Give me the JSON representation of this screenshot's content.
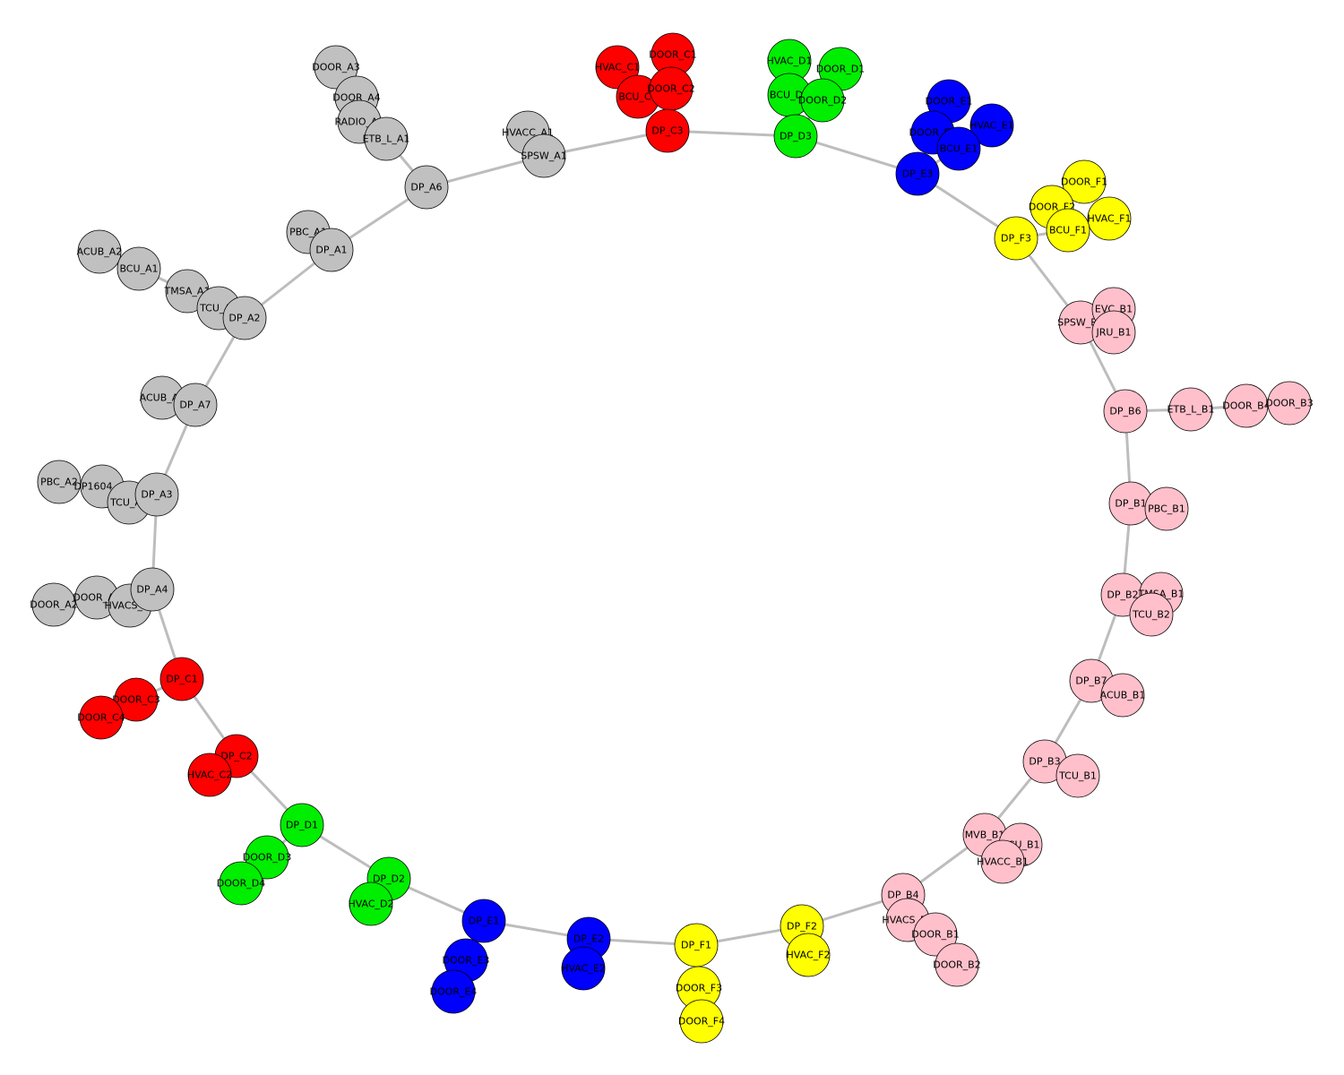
{
  "groups": [
    {
      "name": "A",
      "color": "#c0c0c0"
    },
    {
      "name": "B",
      "color": "#ffc0cb"
    },
    {
      "name": "C",
      "color": "#ff0000"
    },
    {
      "name": "D",
      "color": "#00ee00"
    },
    {
      "name": "E",
      "color": "#0000ff"
    },
    {
      "name": "F",
      "color": "#ffff00"
    }
  ],
  "nodes": [
    {
      "id": "DOOR_A3",
      "label": "DOOR_A3",
      "group": "A"
    },
    {
      "id": "DOOR_A4",
      "label": "DOOR_A4",
      "group": "A"
    },
    {
      "id": "RADIO_A1",
      "label": "RADIO_A1",
      "group": "A"
    },
    {
      "id": "ETB_L_A1",
      "label": "ETB_L_A1",
      "group": "A"
    },
    {
      "id": "DP_A6",
      "label": "DP_A6",
      "group": "A"
    },
    {
      "id": "HVACC_A1",
      "label": "HVACC_A1",
      "group": "A"
    },
    {
      "id": "SPSW_A1",
      "label": "SPSW_A1",
      "group": "A"
    },
    {
      "id": "PBC_A1",
      "label": "PBC_A1",
      "group": "A"
    },
    {
      "id": "DP_A1",
      "label": "DP_A1",
      "group": "A"
    },
    {
      "id": "ACUB_A2",
      "label": "ACUB_A2",
      "group": "A"
    },
    {
      "id": "BCU_A1",
      "label": "BCU_A1",
      "group": "A"
    },
    {
      "id": "TMSA_A1",
      "label": "TMSA_A1",
      "group": "A"
    },
    {
      "id": "TCU_A2",
      "label": "TCU_A2",
      "group": "A"
    },
    {
      "id": "DP_A2",
      "label": "DP_A2",
      "group": "A"
    },
    {
      "id": "ACUB_A1",
      "label": "ACUB_A1",
      "group": "A"
    },
    {
      "id": "DP_A7",
      "label": "DP_A7",
      "group": "A"
    },
    {
      "id": "PBC_A2",
      "label": "PBC_A2",
      "group": "A"
    },
    {
      "id": "DP1604_A1",
      "label": "DP1604_A1",
      "group": "A"
    },
    {
      "id": "TCU_A1",
      "label": "TCU_A1",
      "group": "A"
    },
    {
      "id": "DP_A3",
      "label": "DP_A3",
      "group": "A"
    },
    {
      "id": "DOOR_A2",
      "label": "DOOR_A2",
      "group": "A"
    },
    {
      "id": "DOOR_A1",
      "label": "DOOR_A1",
      "group": "A"
    },
    {
      "id": "HVACS_A1",
      "label": "HVACS_A1",
      "group": "A"
    },
    {
      "id": "DP_A4",
      "label": "DP_A4",
      "group": "A"
    },
    {
      "id": "HVAC_C1",
      "label": "HVAC_C1",
      "group": "C"
    },
    {
      "id": "DOOR_C1",
      "label": "DOOR_C1",
      "group": "C"
    },
    {
      "id": "BCU_C1",
      "label": "BCU_C1",
      "group": "C"
    },
    {
      "id": "DOOR_C2",
      "label": "DOOR_C2",
      "group": "C"
    },
    {
      "id": "DP_C3",
      "label": "DP_C3",
      "group": "C"
    },
    {
      "id": "DP_C1",
      "label": "DP_C1",
      "group": "C"
    },
    {
      "id": "DOOR_C3",
      "label": "DOOR_C3",
      "group": "C"
    },
    {
      "id": "DOOR_C4",
      "label": "DOOR_C4",
      "group": "C"
    },
    {
      "id": "DP_C2",
      "label": "DP_C2",
      "group": "C"
    },
    {
      "id": "HVAC_C2",
      "label": "HVAC_C2",
      "group": "C"
    },
    {
      "id": "HVAC_D1",
      "label": "HVAC_D1",
      "group": "D"
    },
    {
      "id": "DOOR_D1",
      "label": "DOOR_D1",
      "group": "D"
    },
    {
      "id": "BCU_D1",
      "label": "BCU_D1",
      "group": "D"
    },
    {
      "id": "DOOR_D2",
      "label": "DOOR_D2",
      "group": "D"
    },
    {
      "id": "DP_D3",
      "label": "DP_D3",
      "group": "D"
    },
    {
      "id": "DP_D1",
      "label": "DP_D1",
      "group": "D"
    },
    {
      "id": "DOOR_D3",
      "label": "DOOR_D3",
      "group": "D"
    },
    {
      "id": "DOOR_D4",
      "label": "DOOR_D4",
      "group": "D"
    },
    {
      "id": "DP_D2",
      "label": "DP_D2",
      "group": "D"
    },
    {
      "id": "HVAC_D2",
      "label": "HVAC_D2",
      "group": "D"
    },
    {
      "id": "DOOR_E1",
      "label": "DOOR_E1",
      "group": "E"
    },
    {
      "id": "HVAC_E1",
      "label": "HVAC_E1",
      "group": "E"
    },
    {
      "id": "DOOR_E2",
      "label": "DOOR_E2",
      "group": "E"
    },
    {
      "id": "BCU_E1",
      "label": "BCU_E1",
      "group": "E"
    },
    {
      "id": "DP_E3",
      "label": "DP_E3",
      "group": "E"
    },
    {
      "id": "DP_E1",
      "label": "DP_E1",
      "group": "E"
    },
    {
      "id": "DOOR_E3",
      "label": "DOOR_E3",
      "group": "E"
    },
    {
      "id": "DOOR_E4",
      "label": "DOOR_E4",
      "group": "E"
    },
    {
      "id": "DP_E2",
      "label": "DP_E2",
      "group": "E"
    },
    {
      "id": "HVAC_E2",
      "label": "HVAC_E2",
      "group": "E"
    },
    {
      "id": "DOOR_F1",
      "label": "DOOR_F1",
      "group": "F"
    },
    {
      "id": "DOOR_F2",
      "label": "DOOR_F2",
      "group": "F"
    },
    {
      "id": "HVAC_F1",
      "label": "HVAC_F1",
      "group": "F"
    },
    {
      "id": "BCU_F1",
      "label": "BCU_F1",
      "group": "F"
    },
    {
      "id": "DP_F3",
      "label": "DP_F3",
      "group": "F"
    },
    {
      "id": "DP_F1",
      "label": "DP_F1",
      "group": "F"
    },
    {
      "id": "DOOR_F3",
      "label": "DOOR_F3",
      "group": "F"
    },
    {
      "id": "DOOR_F4",
      "label": "DOOR_F4",
      "group": "F"
    },
    {
      "id": "DP_F2",
      "label": "DP_F2",
      "group": "F"
    },
    {
      "id": "HVAC_F2",
      "label": "HVAC_F2",
      "group": "F"
    },
    {
      "id": "SPSW_B1",
      "label": "SPSW_B1",
      "group": "B"
    },
    {
      "id": "EVC_B1",
      "label": "EVC_B1",
      "group": "B"
    },
    {
      "id": "JRU_B1",
      "label": "JRU_B1",
      "group": "B"
    },
    {
      "id": "DP_B6",
      "label": "DP_B6",
      "group": "B"
    },
    {
      "id": "ETB_L_B1",
      "label": "ETB_L_B1",
      "group": "B"
    },
    {
      "id": "DOOR_B4",
      "label": "DOOR_B4",
      "group": "B"
    },
    {
      "id": "DOOR_B3",
      "label": "DOOR_B3",
      "group": "B"
    },
    {
      "id": "DP_B1",
      "label": "DP_B1",
      "group": "B"
    },
    {
      "id": "PBC_B1",
      "label": "PBC_B1",
      "group": "B"
    },
    {
      "id": "DP_B2",
      "label": "DP_B2",
      "group": "B"
    },
    {
      "id": "TMSA_B1",
      "label": "TMSA_B1",
      "group": "B"
    },
    {
      "id": "TCU_B2",
      "label": "TCU_B2",
      "group": "B"
    },
    {
      "id": "DP_B7",
      "label": "DP_B7",
      "group": "B"
    },
    {
      "id": "ACUB_B1",
      "label": "ACUB_B1",
      "group": "B"
    },
    {
      "id": "DP_B3",
      "label": "DP_B3",
      "group": "B"
    },
    {
      "id": "TCU_B1",
      "label": "TCU_B1",
      "group": "B"
    },
    {
      "id": "MVB_B1",
      "label": "MVB_B1",
      "group": "B"
    },
    {
      "id": "BCU_B1",
      "label": "BCU_B1",
      "group": "B"
    },
    {
      "id": "HVACC_B1",
      "label": "HVACC_B1",
      "group": "B"
    },
    {
      "id": "DP_B4",
      "label": "DP_B4",
      "group": "B"
    },
    {
      "id": "HVACS_B1",
      "label": "HVACS_B1",
      "group": "B"
    },
    {
      "id": "DOOR_B1",
      "label": "DOOR_B1",
      "group": "B"
    },
    {
      "id": "DOOR_B2",
      "label": "DOOR_B2",
      "group": "B"
    }
  ],
  "edges": [
    [
      "DOOR_A3",
      "DOOR_A4"
    ],
    [
      "DOOR_A4",
      "RADIO_A1"
    ],
    [
      "RADIO_A1",
      "ETB_L_A1"
    ],
    [
      "ETB_L_A1",
      "DP_A6"
    ],
    [
      "DP_A6",
      "SPSW_A1"
    ],
    [
      "HVACC_A1",
      "SPSW_A1"
    ],
    [
      "SPSW_A1",
      "DP_C3"
    ],
    [
      "DP_A6",
      "DP_A1"
    ],
    [
      "PBC_A1",
      "DP_A1"
    ],
    [
      "DP_A1",
      "DP_A2"
    ],
    [
      "ACUB_A2",
      "BCU_A1"
    ],
    [
      "BCU_A1",
      "TMSA_A1"
    ],
    [
      "TMSA_A1",
      "TCU_A2"
    ],
    [
      "TCU_A2",
      "DP_A2"
    ],
    [
      "DP_A2",
      "DP_A7"
    ],
    [
      "ACUB_A1",
      "DP_A7"
    ],
    [
      "DP_A7",
      "DP_A3"
    ],
    [
      "PBC_A2",
      "DP1604_A1"
    ],
    [
      "DP1604_A1",
      "TCU_A1"
    ],
    [
      "TCU_A1",
      "DP_A3"
    ],
    [
      "DP_A3",
      "DP_A4"
    ],
    [
      "DOOR_A2",
      "DOOR_A1"
    ],
    [
      "DOOR_A1",
      "HVACS_A1"
    ],
    [
      "HVACS_A1",
      "DP_A4"
    ],
    [
      "DP_A4",
      "DP_C1"
    ],
    [
      "HVAC_C1",
      "BCU_C1"
    ],
    [
      "DOOR_C1",
      "DOOR_C2"
    ],
    [
      "BCU_C1",
      "DOOR_C2"
    ],
    [
      "DOOR_C2",
      "DP_C3"
    ],
    [
      "DP_C3",
      "DP_D3"
    ],
    [
      "DP_C1",
      "DOOR_C3"
    ],
    [
      "DOOR_C3",
      "DOOR_C4"
    ],
    [
      "DP_C1",
      "DP_C2"
    ],
    [
      "DP_C2",
      "HVAC_C2"
    ],
    [
      "DP_C2",
      "DP_D1"
    ],
    [
      "HVAC_D1",
      "BCU_D1"
    ],
    [
      "DOOR_D1",
      "DOOR_D2"
    ],
    [
      "BCU_D1",
      "DOOR_D2"
    ],
    [
      "DOOR_D2",
      "DP_D3"
    ],
    [
      "DP_D3",
      "DP_E3"
    ],
    [
      "DP_D1",
      "DOOR_D3"
    ],
    [
      "DOOR_D3",
      "DOOR_D4"
    ],
    [
      "DP_D1",
      "DP_D2"
    ],
    [
      "DP_D2",
      "HVAC_D2"
    ],
    [
      "DP_D2",
      "DP_E1"
    ],
    [
      "DOOR_E1",
      "DOOR_E2"
    ],
    [
      "HVAC_E1",
      "BCU_E1"
    ],
    [
      "DOOR_E2",
      "BCU_E1"
    ],
    [
      "BCU_E1",
      "DP_E3"
    ],
    [
      "DP_E3",
      "DP_F3"
    ],
    [
      "DP_E1",
      "DOOR_E3"
    ],
    [
      "DOOR_E3",
      "DOOR_E4"
    ],
    [
      "DP_E1",
      "DP_E2"
    ],
    [
      "DP_E2",
      "HVAC_E2"
    ],
    [
      "DP_E2",
      "DP_F1"
    ],
    [
      "DOOR_F1",
      "DOOR_F2"
    ],
    [
      "DOOR_F2",
      "BCU_F1"
    ],
    [
      "HVAC_F1",
      "BCU_F1"
    ],
    [
      "BCU_F1",
      "DP_F3"
    ],
    [
      "DP_F3",
      "SPSW_B1"
    ],
    [
      "DP_F1",
      "DOOR_F3"
    ],
    [
      "DOOR_F3",
      "DOOR_F4"
    ],
    [
      "DP_F1",
      "DP_F2"
    ],
    [
      "DP_F2",
      "HVAC_F2"
    ],
    [
      "DP_F2",
      "DP_B4"
    ],
    [
      "SPSW_B1",
      "EVC_B1"
    ],
    [
      "SPSW_B1",
      "JRU_B1"
    ],
    [
      "SPSW_B1",
      "DP_B6"
    ],
    [
      "DP_B6",
      "ETB_L_B1"
    ],
    [
      "ETB_L_B1",
      "DOOR_B4"
    ],
    [
      "DOOR_B4",
      "DOOR_B3"
    ],
    [
      "DP_B6",
      "DP_B1"
    ],
    [
      "DP_B1",
      "PBC_B1"
    ],
    [
      "DP_B1",
      "DP_B2"
    ],
    [
      "DP_B2",
      "TMSA_B1"
    ],
    [
      "TMSA_B1",
      "TCU_B2"
    ],
    [
      "DP_B2",
      "DP_B7"
    ],
    [
      "DP_B7",
      "ACUB_B1"
    ],
    [
      "DP_B7",
      "DP_B3"
    ],
    [
      "DP_B3",
      "TCU_B1"
    ],
    [
      "DP_B3",
      "MVB_B1"
    ],
    [
      "MVB_B1",
      "BCU_B1"
    ],
    [
      "BCU_B1",
      "HVACC_B1"
    ],
    [
      "MVB_B1",
      "DP_B4"
    ],
    [
      "DP_B4",
      "HVACS_B1"
    ],
    [
      "HVACS_B1",
      "DOOR_B1"
    ],
    [
      "DOOR_B1",
      "DOOR_B2"
    ]
  ]
}
